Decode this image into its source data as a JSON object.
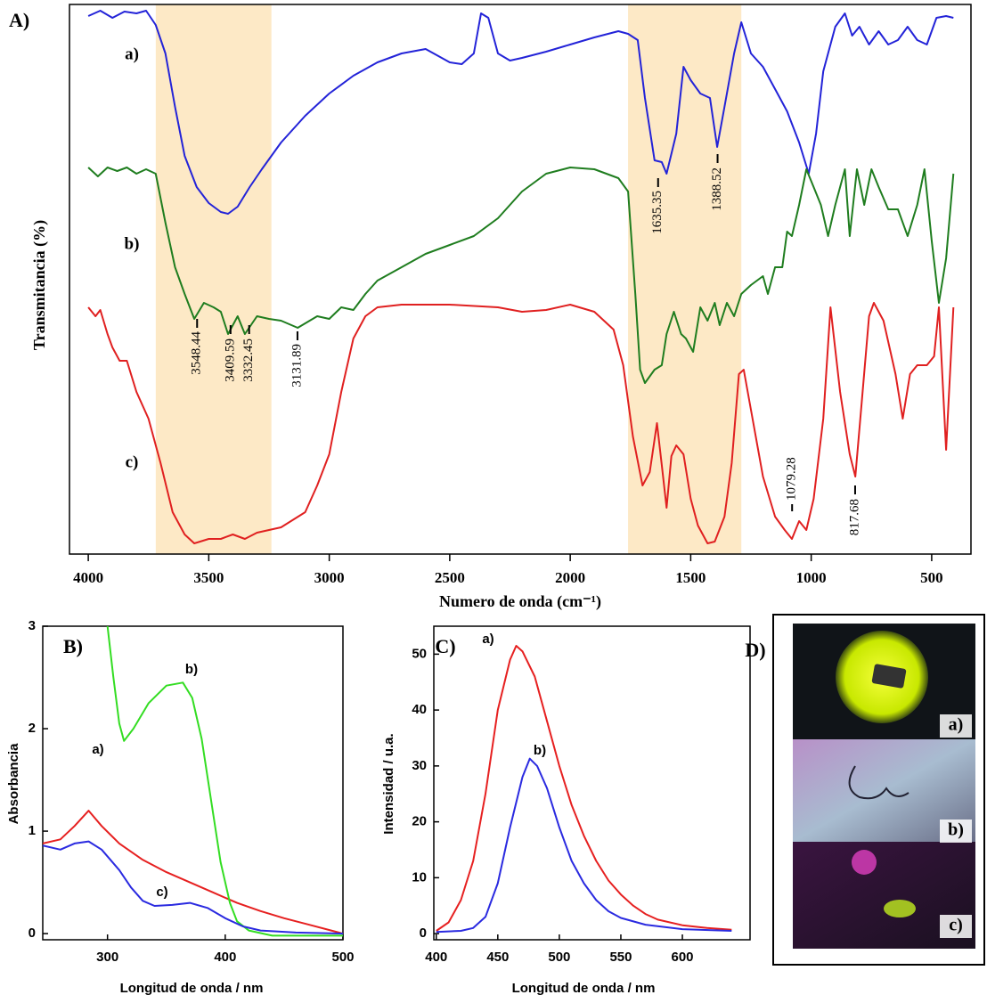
{
  "chart_data": [
    {
      "type": "line",
      "panel_label": "A)",
      "xlabel": "Numero de onda (cm⁻¹)",
      "ylabel": "Transmitancia (%)",
      "xlim": [
        4078,
        337
      ],
      "ylim": [
        0,
        617
      ],
      "xticks": [
        4000,
        3500,
        3000,
        2500,
        2000,
        1500,
        1000,
        500
      ],
      "highlight_bands": [
        [
          3720,
          3240
        ],
        [
          1760,
          1290
        ]
      ],
      "band_color": "#fde9c6",
      "series": [
        {
          "name": "a)",
          "color": "#2323d8",
          "x": [
            4000,
            3950,
            3900,
            3850,
            3800,
            3760,
            3720,
            3680,
            3640,
            3600,
            3550,
            3500,
            3450,
            3420,
            3380,
            3330,
            3280,
            3200,
            3100,
            3000,
            2900,
            2800,
            2700,
            2600,
            2500,
            2450,
            2400,
            2370,
            2340,
            2300,
            2250,
            2200,
            2100,
            2000,
            1900,
            1800,
            1760,
            1720,
            1690,
            1650,
            1620,
            1600,
            1560,
            1530,
            1500,
            1460,
            1420,
            1390,
            1360,
            1320,
            1290,
            1250,
            1200,
            1150,
            1100,
            1050,
            1010,
            980,
            950,
            900,
            860,
            830,
            800,
            760,
            720,
            680,
            640,
            600,
            560,
            520,
            480,
            440,
            410
          ],
          "values": [
            604,
            610,
            602,
            609,
            607,
            610,
            594,
            562,
            502,
            447,
            412,
            394,
            384,
            382,
            390,
            412,
            432,
            462,
            492,
            517,
            537,
            552,
            562,
            567,
            552,
            550,
            562,
            607,
            602,
            562,
            554,
            557,
            564,
            572,
            580,
            587,
            584,
            577,
            512,
            442,
            440,
            427,
            472,
            547,
            532,
            517,
            512,
            457,
            502,
            562,
            597,
            562,
            547,
            522,
            497,
            462,
            427,
            472,
            542,
            592,
            607,
            582,
            592,
            572,
            587,
            572,
            577,
            592,
            577,
            572,
            602,
            604,
            602
          ]
        },
        {
          "name": "b)",
          "color": "#1f7d1f",
          "x": [
            4000,
            3960,
            3920,
            3880,
            3840,
            3800,
            3760,
            3720,
            3680,
            3640,
            3600,
            3560,
            3520,
            3480,
            3450,
            3420,
            3380,
            3350,
            3300,
            3250,
            3200,
            3131,
            3050,
            3000,
            2950,
            2900,
            2850,
            2800,
            2700,
            2600,
            2500,
            2400,
            2300,
            2200,
            2100,
            2000,
            1900,
            1800,
            1760,
            1730,
            1710,
            1690,
            1650,
            1620,
            1600,
            1570,
            1540,
            1520,
            1490,
            1460,
            1430,
            1400,
            1380,
            1350,
            1320,
            1290,
            1250,
            1200,
            1180,
            1150,
            1120,
            1100,
            1080,
            1050,
            1020,
            990,
            960,
            930,
            900,
            860,
            840,
            810,
            780,
            750,
            720,
            680,
            640,
            600,
            560,
            530,
            500,
            470,
            440,
            410
          ],
          "values": [
            434,
            424,
            434,
            430,
            434,
            427,
            432,
            427,
            372,
            322,
            292,
            264,
            282,
            277,
            272,
            247,
            267,
            247,
            267,
            264,
            262,
            254,
            267,
            264,
            277,
            274,
            292,
            307,
            322,
            337,
            347,
            357,
            377,
            407,
            427,
            434,
            432,
            422,
            407,
            292,
            207,
            192,
            207,
            212,
            247,
            272,
            247,
            242,
            227,
            277,
            262,
            282,
            257,
            282,
            267,
            292,
            302,
            312,
            292,
            322,
            322,
            362,
            357,
            392,
            432,
            412,
            392,
            357,
            392,
            432,
            357,
            432,
            392,
            432,
            412,
            387,
            387,
            357,
            392,
            432,
            352,
            282,
            332,
            427
          ]
        },
        {
          "name": "c)",
          "color": "#e02020",
          "x": [
            4000,
            3970,
            3950,
            3920,
            3900,
            3870,
            3840,
            3800,
            3750,
            3700,
            3650,
            3600,
            3560,
            3500,
            3450,
            3400,
            3350,
            3300,
            3250,
            3200,
            3100,
            3050,
            3000,
            2950,
            2900,
            2850,
            2800,
            2700,
            2500,
            2300,
            2200,
            2100,
            2000,
            1900,
            1820,
            1780,
            1740,
            1700,
            1670,
            1640,
            1620,
            1600,
            1580,
            1560,
            1530,
            1500,
            1470,
            1430,
            1400,
            1360,
            1330,
            1300,
            1280,
            1250,
            1200,
            1150,
            1110,
            1080,
            1050,
            1020,
            990,
            950,
            920,
            880,
            840,
            817,
            790,
            760,
            740,
            700,
            650,
            620,
            590,
            560,
            520,
            490,
            470,
            440,
            410
          ],
          "values": [
            277,
            267,
            274,
            247,
            232,
            217,
            217,
            182,
            152,
            102,
            47,
            22,
            12,
            17,
            17,
            22,
            17,
            24,
            27,
            30,
            47,
            77,
            112,
            182,
            242,
            267,
            277,
            280,
            280,
            277,
            272,
            274,
            280,
            272,
            252,
            212,
            132,
            77,
            92,
            147,
            100,
            52,
            110,
            122,
            112,
            62,
            32,
            12,
            14,
            42,
            102,
            202,
            207,
            162,
            87,
            42,
            27,
            17,
            37,
            27,
            62,
            152,
            277,
            182,
            112,
            87,
            172,
            267,
            282,
            262,
            202,
            152,
            202,
            212,
            212,
            222,
            277,
            117,
            277
          ]
        }
      ],
      "annotations": [
        {
          "text": "3548.44",
          "x": 3548.44
        },
        {
          "text": "3409.59",
          "x": 3409.59
        },
        {
          "text": "3332.45",
          "x": 3332.45
        },
        {
          "text": "3131.89",
          "x": 3131.89
        },
        {
          "text": "1635.35",
          "x": 1635.35
        },
        {
          "text": "1388.52",
          "x": 1388.52
        },
        {
          "text": "1079.28",
          "x": 1079.28
        },
        {
          "text": "817.68",
          "x": 817.68
        }
      ]
    },
    {
      "type": "line",
      "panel_label": "B)",
      "xlabel": "Longitud de onda / nm",
      "ylabel": "Absorbancia",
      "xlim": [
        245,
        500
      ],
      "ylim": [
        -0.06,
        3
      ],
      "xticks": [
        300,
        400,
        500
      ],
      "yticks": [
        0,
        1,
        2,
        3
      ],
      "series": [
        {
          "name": "a)",
          "color": "#e62020",
          "x": [
            245,
            260,
            272,
            284,
            295,
            310,
            330,
            350,
            370,
            390,
            410,
            430,
            450,
            470,
            490,
            500
          ],
          "values": [
            0.88,
            0.92,
            1.05,
            1.2,
            1.05,
            0.88,
            0.72,
            0.6,
            0.5,
            0.4,
            0.3,
            0.22,
            0.15,
            0.09,
            0.03,
            0.0
          ]
        },
        {
          "name": "b)",
          "color": "#33dd22",
          "x": [
            300,
            305,
            310,
            314,
            322,
            335,
            350,
            364,
            372,
            380,
            388,
            396,
            404,
            410,
            420,
            440,
            500
          ],
          "values": [
            3.0,
            2.5,
            2.05,
            1.88,
            2.0,
            2.25,
            2.42,
            2.45,
            2.3,
            1.9,
            1.3,
            0.7,
            0.3,
            0.12,
            0.03,
            -0.02,
            -0.02
          ]
        },
        {
          "name": "c)",
          "color": "#2a2ae0",
          "x": [
            245,
            260,
            272,
            284,
            295,
            310,
            320,
            330,
            340,
            355,
            370,
            385,
            400,
            415,
            430,
            460,
            500
          ],
          "values": [
            0.86,
            0.82,
            0.88,
            0.9,
            0.82,
            0.62,
            0.45,
            0.32,
            0.27,
            0.28,
            0.3,
            0.25,
            0.15,
            0.07,
            0.03,
            0.01,
            0.0
          ]
        }
      ]
    },
    {
      "type": "line",
      "panel_label": "C)",
      "xlabel": "Longitud de onda / nm",
      "ylabel": "Intensidad / u.a.",
      "xlim": [
        398,
        655
      ],
      "ylim": [
        -1.1,
        55
      ],
      "xticks": [
        400,
        450,
        500,
        550,
        600
      ],
      "yticks": [
        0,
        10,
        20,
        30,
        40,
        50
      ],
      "series": [
        {
          "name": "a)",
          "color": "#e62020",
          "x": [
            400,
            410,
            420,
            430,
            440,
            450,
            460,
            465,
            470,
            480,
            490,
            500,
            510,
            520,
            530,
            540,
            550,
            560,
            570,
            580,
            600,
            620,
            640
          ],
          "values": [
            0.5,
            2,
            6,
            13,
            25,
            40,
            49,
            51.5,
            50.5,
            46,
            38,
            30,
            23,
            17.5,
            13,
            9.5,
            7,
            5,
            3.5,
            2.5,
            1.5,
            1,
            0.7
          ]
        },
        {
          "name": "b)",
          "color": "#2a2ae0",
          "x": [
            400,
            420,
            430,
            440,
            450,
            460,
            470,
            476,
            482,
            490,
            500,
            510,
            520,
            530,
            540,
            550,
            570,
            600,
            640
          ],
          "values": [
            0.3,
            0.5,
            1,
            3,
            9,
            19,
            28,
            31.3,
            30,
            26,
            19,
            13,
            9,
            6,
            4,
            2.8,
            1.6,
            0.8,
            0.5
          ]
        }
      ]
    }
  ],
  "photo_panel": {
    "label": "D)",
    "captions": [
      "a)",
      "b)",
      "c)"
    ]
  }
}
